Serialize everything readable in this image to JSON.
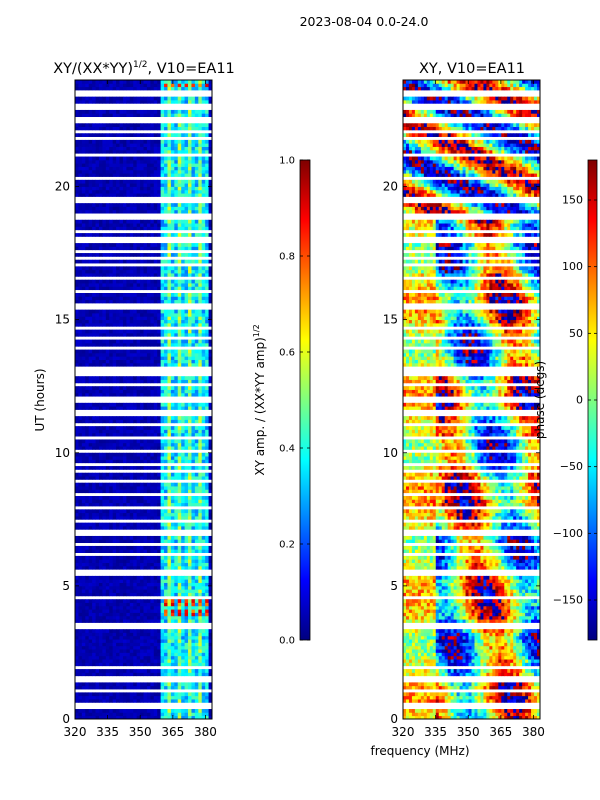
{
  "suptitle": "2023-08-04 0.0-24.0",
  "colors": {
    "jet": [
      "#00007f",
      "#0000ff",
      "#007fff",
      "#00ffff",
      "#7fff7f",
      "#ffff00",
      "#ff7f00",
      "#ff0000",
      "#7f0000"
    ],
    "gap": "#ffffff",
    "axis": "#000000"
  },
  "chart_data": [
    {
      "type": "heatmap",
      "title": "XY/(XX*YY)",
      "title_exp": "1/2",
      "title_suffix": ", V10=EA11",
      "xlabel": "",
      "ylabel": "UT (hours)",
      "xlim": [
        320,
        383
      ],
      "ylim": [
        0,
        24
      ],
      "xticks": [
        "320",
        "335",
        "350",
        "365",
        "380"
      ],
      "xtick_values": [
        320,
        335,
        350,
        365,
        380
      ],
      "yticks": [
        "0",
        "5",
        "10",
        "15",
        "20"
      ],
      "ytick_values": [
        0,
        5,
        10,
        15,
        20
      ],
      "bright_band_mhz": [
        360,
        382
      ],
      "hot_rows_ut": [
        4.0,
        4.4,
        23.8
      ],
      "gaps_ut": [
        0.5,
        1.1,
        1.5,
        1.9,
        3.45,
        3.6,
        4.6,
        5.4,
        5.55,
        6.2,
        6.6,
        7.0,
        7.4,
        7.9,
        8.4,
        8.9,
        9.3,
        9.6,
        10.1,
        10.6,
        11.1,
        11.5,
        12.0,
        12.6,
        13.0,
        13.2,
        13.9,
        14.3,
        14.7,
        15.5,
        16.1,
        16.6,
        17.1,
        17.3,
        17.6,
        18.0,
        18.3,
        18.8,
        18.9,
        19.5,
        19.6,
        20.3,
        21.2,
        21.8,
        22.1,
        22.5,
        23.0,
        23.4,
        23.5
      ]
    },
    {
      "type": "heatmap",
      "title": "XY, V10=EA11",
      "xlabel": "frequency (MHz)",
      "ylabel": "",
      "xlim": [
        320,
        383
      ],
      "ylim": [
        0,
        24
      ],
      "xticks": [
        "320",
        "335",
        "350",
        "365",
        "380"
      ],
      "xtick_values": [
        320,
        335,
        350,
        365,
        380
      ],
      "yticks": [
        "0",
        "5",
        "10",
        "15",
        "20"
      ],
      "ytick_values": [
        0,
        5,
        10,
        15,
        20
      ],
      "gaps_ut": [
        0.5,
        1.1,
        1.5,
        1.9,
        3.45,
        3.6,
        4.6,
        5.4,
        5.55,
        6.2,
        6.6,
        7.0,
        7.4,
        7.9,
        8.4,
        8.9,
        9.3,
        9.6,
        10.1,
        10.6,
        11.1,
        11.5,
        12.0,
        12.6,
        13.0,
        13.2,
        13.9,
        14.3,
        14.7,
        15.5,
        16.1,
        16.6,
        17.1,
        17.3,
        17.6,
        18.0,
        18.3,
        18.8,
        18.9,
        19.5,
        19.6,
        20.3,
        21.2,
        21.8,
        22.1,
        22.5,
        23.0,
        23.4,
        23.5
      ]
    }
  ],
  "colorbar_amp": {
    "label": "XY amp. / (XX*YY amp)",
    "label_exp": "1/2",
    "range": [
      0.0,
      1.0
    ],
    "ticks": [
      "0.0",
      "0.2",
      "0.4",
      "0.6",
      "0.8",
      "1.0"
    ],
    "tick_values": [
      0.0,
      0.2,
      0.4,
      0.6,
      0.8,
      1.0
    ]
  },
  "colorbar_phase": {
    "label": "phase (degs)",
    "range": [
      -180,
      180
    ],
    "ticks": [
      "−150",
      "−100",
      "−50",
      "0",
      "50",
      "100",
      "150"
    ],
    "tick_values": [
      -150,
      -100,
      -50,
      0,
      50,
      100,
      150
    ]
  }
}
